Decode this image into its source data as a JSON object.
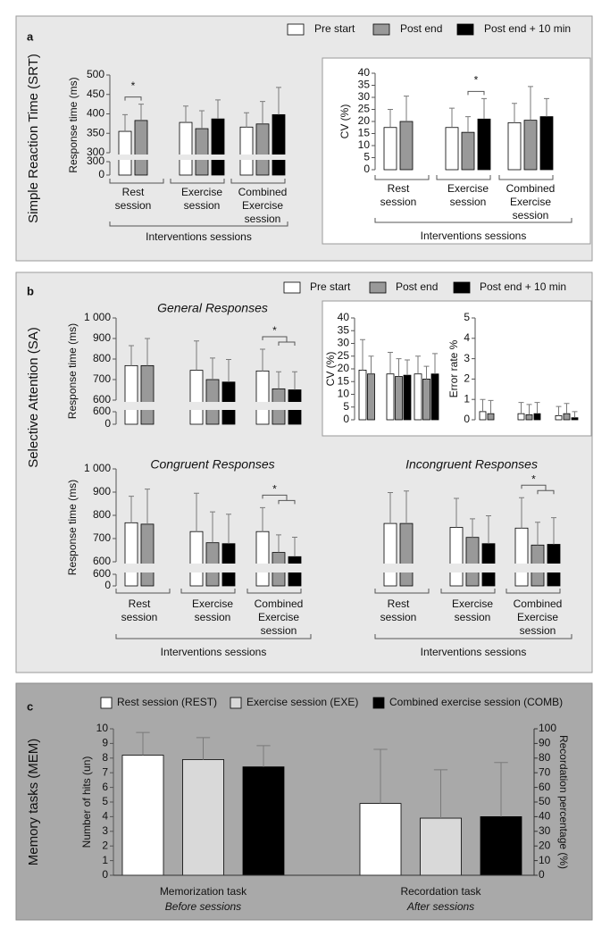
{
  "panels": [
    {
      "label": "a",
      "title": "Simple Reaction Time (SRT)"
    },
    {
      "label": "b",
      "title": "Selective Attention (SA)"
    },
    {
      "label": "c",
      "title": "Memory tasks (MEM)"
    }
  ],
  "chart_data": [
    {
      "type": "bar",
      "ylabel": "Response time (ms)",
      "ylim": [
        300,
        500
      ],
      "yticks": [
        300,
        350,
        400,
        450,
        500
      ],
      "ylim_break": [
        0,
        300
      ],
      "yticks_break": [
        0,
        300
      ],
      "categories": [
        "Rest session",
        "Exercise session",
        "Combined Exercise session"
      ],
      "group_label": "Interventions sessions",
      "series": [
        {
          "name": "Pre start",
          "color": "#ffffff",
          "values": [
            355,
            378,
            366
          ],
          "errors": [
            43,
            42,
            37
          ]
        },
        {
          "name": "Post end",
          "color": "#999999",
          "values": [
            383,
            362,
            374
          ],
          "errors": [
            42,
            46,
            58
          ]
        },
        {
          "name": "Post end + 10 min",
          "color": "#000000",
          "values": [
            null,
            387,
            398
          ],
          "errors": [
            null,
            49,
            70
          ]
        }
      ],
      "annotations": [
        {
          "text": "*",
          "category": 0,
          "bars": [
            0,
            1
          ]
        }
      ]
    },
    {
      "type": "bar",
      "ylabel": "CV (%)",
      "ylim": [
        0,
        40
      ],
      "yticks": [
        0,
        5,
        10,
        15,
        20,
        25,
        30,
        35,
        40
      ],
      "categories": [
        "Rest session",
        "Exercise session",
        "Combined Exercise session"
      ],
      "group_label": "Interventions sessions",
      "series": [
        {
          "color": "#ffffff",
          "values": [
            17.5,
            17.5,
            19.5
          ],
          "errors": [
            7.5,
            8,
            8
          ]
        },
        {
          "color": "#999999",
          "values": [
            20,
            15.5,
            20.5
          ],
          "errors": [
            10.5,
            6.5,
            14
          ]
        },
        {
          "color": "#000000",
          "values": [
            null,
            21,
            22
          ],
          "errors": [
            null,
            8.5,
            7.5
          ]
        }
      ],
      "annotations": [
        {
          "text": "*",
          "category": 1,
          "bars": [
            1,
            2
          ]
        }
      ]
    },
    {
      "type": "bar",
      "title": "General Responses",
      "ylabel": "Response time (ms)",
      "ylim": [
        600,
        1000
      ],
      "yticks": [
        600,
        700,
        800,
        900,
        {
          "value": 1000,
          "label": "1 000"
        }
      ],
      "ylim_break": [
        0,
        600
      ],
      "yticks_break": [
        0,
        600
      ],
      "categories": [
        null,
        null,
        null
      ],
      "series": [
        {
          "name": "Pre start",
          "color": "#ffffff",
          "values": [
            768,
            745,
            742
          ],
          "errors": [
            97,
            143,
            106
          ]
        },
        {
          "name": "Post end",
          "color": "#999999",
          "values": [
            768,
            700,
            655
          ],
          "errors": [
            132,
            105,
            83
          ]
        },
        {
          "name": "Post end + 10 min",
          "color": "#000000",
          "values": [
            null,
            688,
            650
          ],
          "errors": [
            null,
            110,
            88
          ]
        }
      ],
      "annotations": [
        {
          "text": "*",
          "category": 2,
          "bars": [
            0,
            1,
            2
          ]
        }
      ]
    },
    {
      "type": "bar",
      "ylabel": "CV (%)",
      "ylim": [
        0,
        40
      ],
      "yticks": [
        0,
        5,
        10,
        15,
        20,
        25,
        30,
        35,
        40
      ],
      "categories": [
        null,
        null,
        null
      ],
      "series": [
        {
          "color": "#ffffff",
          "values": [
            19.5,
            18,
            18
          ],
          "errors": [
            12,
            8.5,
            7
          ]
        },
        {
          "color": "#999999",
          "values": [
            18,
            17,
            16
          ],
          "errors": [
            7,
            7,
            5
          ]
        },
        {
          "color": "#000000",
          "values": [
            null,
            17.5,
            18
          ],
          "errors": [
            null,
            6,
            8
          ]
        }
      ]
    },
    {
      "type": "bar",
      "ylabel": "Error rate %",
      "ylim": [
        0,
        5
      ],
      "yticks": [
        0,
        1,
        2,
        3,
        4,
        5
      ],
      "categories": [
        null,
        null,
        null
      ],
      "series": [
        {
          "color": "#ffffff",
          "values": [
            0.4,
            0.3,
            0.2
          ],
          "errors": [
            0.6,
            0.55,
            0.45
          ]
        },
        {
          "color": "#999999",
          "values": [
            0.3,
            0.25,
            0.3
          ],
          "errors": [
            0.65,
            0.5,
            0.5
          ]
        },
        {
          "color": "#000000",
          "values": [
            null,
            0.3,
            0.1
          ],
          "errors": [
            null,
            0.55,
            0.3
          ]
        }
      ]
    },
    {
      "type": "bar",
      "title": "Congruent Responses",
      "ylabel": "Response time (ms)",
      "ylim": [
        600,
        1000
      ],
      "yticks": [
        600,
        700,
        800,
        900,
        {
          "value": 1000,
          "label": "1 000"
        }
      ],
      "ylim_break": [
        0,
        600
      ],
      "yticks_break": [
        0,
        600
      ],
      "categories": [
        "Rest session",
        "Exercise session",
        "Combined Exercise session"
      ],
      "group_label": "Interventions sessions",
      "series": [
        {
          "color": "#ffffff",
          "values": [
            768,
            730,
            730
          ],
          "errors": [
            114,
            165,
            103
          ]
        },
        {
          "color": "#999999",
          "values": [
            762,
            682,
            640
          ],
          "errors": [
            151,
            133,
            76
          ]
        },
        {
          "color": "#000000",
          "values": [
            null,
            678,
            622
          ],
          "errors": [
            null,
            127,
            84
          ]
        }
      ],
      "annotations": [
        {
          "text": "*",
          "category": 2,
          "bars": [
            0,
            1,
            2
          ]
        }
      ]
    },
    {
      "type": "bar",
      "title": "Incongruent Responses",
      "ylim": [
        600,
        1000
      ],
      "ylim_break": [
        0,
        600
      ],
      "categories": [
        "Rest session",
        "Exercise session",
        "Combined Exercise session"
      ],
      "group_label": "Interventions sessions",
      "series": [
        {
          "color": "#ffffff",
          "values": [
            765,
            748,
            745
          ],
          "errors": [
            133,
            125,
            131
          ]
        },
        {
          "color": "#999999",
          "values": [
            765,
            705,
            672
          ],
          "errors": [
            140,
            80,
            98
          ]
        },
        {
          "color": "#000000",
          "values": [
            null,
            678,
            675
          ],
          "errors": [
            null,
            120,
            115
          ]
        }
      ],
      "annotations": [
        {
          "text": "*",
          "category": 2,
          "bars": [
            0,
            1,
            2
          ]
        }
      ]
    },
    {
      "type": "bar",
      "ylabel": "Number of hits (un)",
      "y2label": "Recordation percentage (%)",
      "ylim": [
        0,
        10
      ],
      "yticks": [
        0,
        1,
        2,
        3,
        4,
        5,
        6,
        7,
        8,
        9,
        10
      ],
      "y2lim": [
        0,
        100
      ],
      "y2ticks": [
        0,
        10,
        20,
        30,
        40,
        50,
        60,
        70,
        80,
        90,
        100
      ],
      "categories": [
        "Memorization task",
        "Recordation task"
      ],
      "category_notes": [
        "Before sessions",
        "After sessions"
      ],
      "category_axis": [
        "y",
        "y2"
      ],
      "series": [
        {
          "name": "Rest session (REST)",
          "color": "#ffffff",
          "values": [
            8.2,
            49
          ],
          "errors": [
            1.55,
            37
          ]
        },
        {
          "name": "Exercise session (EXE)",
          "color": "#d9d9d9",
          "values": [
            7.9,
            39
          ],
          "errors": [
            1.5,
            33
          ]
        },
        {
          "name": "Combined exercise session (COMB)",
          "color": "#000000",
          "values": [
            7.4,
            40
          ],
          "errors": [
            1.45,
            37
          ]
        }
      ]
    }
  ]
}
